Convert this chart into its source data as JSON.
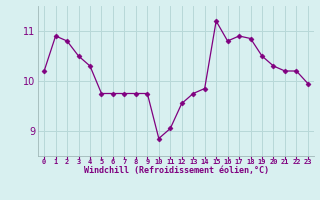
{
  "x": [
    0,
    1,
    2,
    3,
    4,
    5,
    6,
    7,
    8,
    9,
    10,
    11,
    12,
    13,
    14,
    15,
    16,
    17,
    18,
    19,
    20,
    21,
    22,
    23
  ],
  "y": [
    10.2,
    10.9,
    10.8,
    10.5,
    10.3,
    9.75,
    9.75,
    9.75,
    9.75,
    9.75,
    8.85,
    9.05,
    9.55,
    9.75,
    9.85,
    11.2,
    10.8,
    10.9,
    10.85,
    10.5,
    10.3,
    10.2,
    10.2,
    9.95
  ],
  "line_color": "#800080",
  "marker": "D",
  "marker_size": 2.5,
  "bg_color": "#d8f0f0",
  "grid_color": "#b8d8d8",
  "xlabel": "Windchill (Refroidissement éolien,°C)",
  "xlabel_color": "#800080",
  "tick_color": "#800080",
  "xlim": [
    -0.5,
    23.5
  ],
  "ylim": [
    8.5,
    11.5
  ],
  "yticks": [
    9,
    10,
    11
  ],
  "xtick_labels": [
    "0",
    "1",
    "2",
    "3",
    "4",
    "5",
    "6",
    "7",
    "8",
    "9",
    "10",
    "11",
    "12",
    "13",
    "14",
    "15",
    "16",
    "17",
    "18",
    "19",
    "20",
    "21",
    "22",
    "23"
  ]
}
